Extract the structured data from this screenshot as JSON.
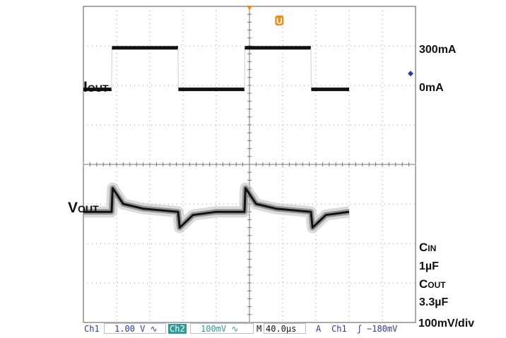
{
  "chart_data": {
    "type": "line",
    "x_divisions": 10,
    "y_divisions": 8,
    "time_per_div": "40.0µs",
    "series": [
      {
        "name": "IOUT",
        "channel": "Ch1",
        "x_div": [
          0,
          0.85,
          0.86,
          2.85,
          2.86,
          4.85,
          4.86,
          6.85,
          6.86,
          8.0
        ],
        "y_level_mA": [
          0,
          0,
          300,
          300,
          0,
          0,
          300,
          300,
          0,
          0
        ]
      },
      {
        "name": "VOUT",
        "channel": "Ch2",
        "x_div": [
          0,
          0.85,
          0.88,
          1.2,
          1.8,
          2.85,
          2.9,
          3.3,
          4.0,
          4.85,
          4.88,
          5.2,
          5.8,
          6.85,
          6.9,
          7.3,
          8.0
        ],
        "y_deviation_mV": [
          0,
          0,
          60,
          20,
          8,
          0,
          -40,
          -8,
          0,
          0,
          60,
          20,
          8,
          0,
          -40,
          -8,
          0
        ]
      }
    ]
  },
  "labels": {
    "iout_main": "I",
    "iout_sub": "OUT",
    "vout_main": "V",
    "vout_sub": "OUT",
    "level_300": "300mA",
    "level_0": "0mA",
    "cin_main": "C",
    "cin_sub": "IN",
    "cin_value": "1µF",
    "cout_main": "C",
    "cout_sub": "OUT",
    "cout_value": "3.3µF",
    "vdiv": "100mV/div"
  },
  "status_bar": {
    "ch1": "Ch1",
    "ch1_scale": "1.00 V",
    "ch2": "Ch2",
    "ch2_scale": "100mV",
    "time_prefix": "M",
    "time": "40.0µs",
    "trigger_mode": "A",
    "trigger_source": "Ch1",
    "trigger_level": "−180mV"
  },
  "markers": {
    "trigger_marker": "U"
  },
  "colors": {
    "trace": "#111111",
    "grid": "#9a9a9a",
    "trigger": "#f08c1e",
    "status_text": "#2a3aa0",
    "ch2_highlight": "#2f9a98",
    "level_marker": "#2a3aa0"
  }
}
